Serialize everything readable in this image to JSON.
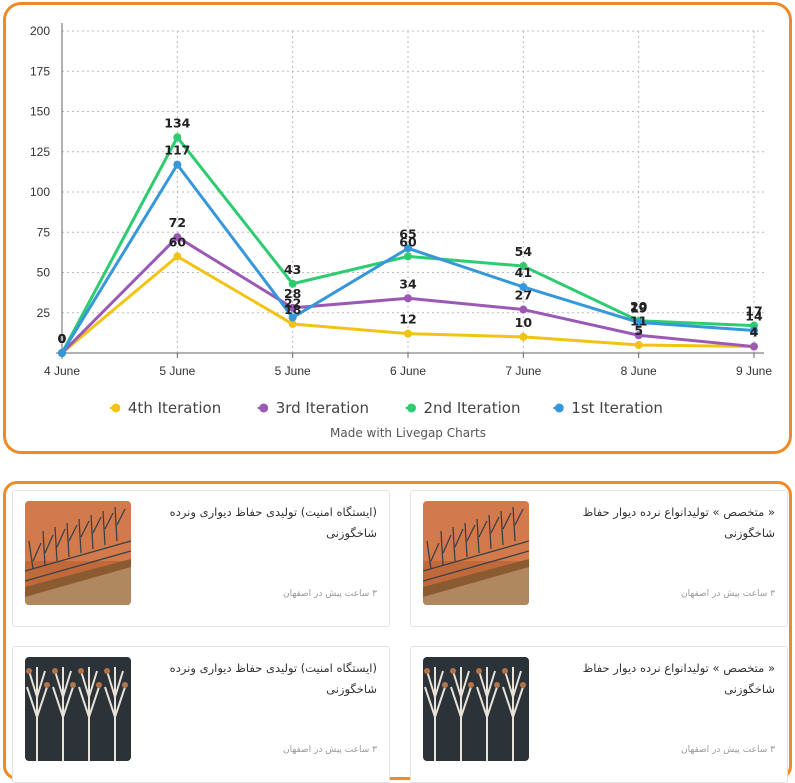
{
  "chart_data": {
    "type": "line",
    "categories": [
      "4 June",
      "5 June",
      "5 June",
      "6 June",
      "7 June",
      "8 June",
      "9 June"
    ],
    "ylim": [
      0,
      200
    ],
    "yticks": [
      25,
      50,
      75,
      100,
      125,
      150,
      175,
      200
    ],
    "grid": true,
    "legend_position": "bottom",
    "series": [
      {
        "name": "4th Iteration",
        "color": "#f2c314",
        "values": [
          0,
          60,
          18,
          12,
          10,
          5,
          4
        ]
      },
      {
        "name": "3rd Iteration",
        "color": "#9b59b6",
        "values": [
          0,
          72,
          28,
          34,
          27,
          11,
          4
        ]
      },
      {
        "name": "2nd Iteration",
        "color": "#2ecc71",
        "values": [
          0,
          134,
          43,
          60,
          54,
          20,
          17
        ]
      },
      {
        "name": "1st Iteration",
        "color": "#3498db",
        "values": [
          0,
          117,
          22,
          65,
          41,
          19,
          14
        ]
      }
    ],
    "credit": "Made with Livegap Charts"
  },
  "ads": [
    {
      "title": "« متخصص » تولیدانواع نرده دیوار حفاظ شاخگوزنی",
      "meta": "۳ ساعت پیش در اصفهان",
      "image": "orange-wall-branches"
    },
    {
      "title": "(ایستگاه امنیت) تولیدی حفاظ دیواری ونرده شاخگوزنی",
      "meta": "۳ ساعت پیش در اصفهان",
      "image": "orange-wall-branches"
    },
    {
      "title": "« متخصص » تولیدانواع نرده دیوار حفاظ شاخگوزنی",
      "meta": "۳ ساعت پیش در اصفهان",
      "image": "dark-antler-fence"
    },
    {
      "title": "(ایستگاه امنیت) تولیدی حفاظ دیواری ونرده شاخگوزنی",
      "meta": "۳ ساعت پیش در اصفهان",
      "image": "dark-antler-fence"
    }
  ]
}
